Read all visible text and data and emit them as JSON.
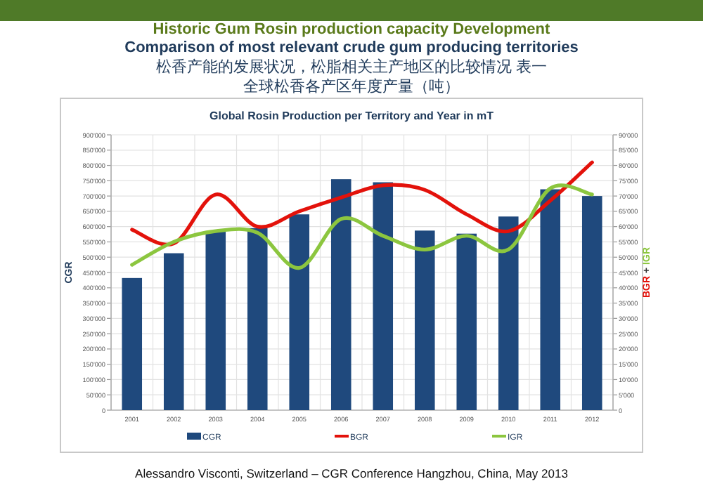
{
  "chart_data": {
    "type": "bar",
    "title": "Global Rosin Production per Territory and Year in mT",
    "annotations": [
      "Historic Gum Rosin production capacity Development",
      "Comparison of most relevant crude gum producing territories",
      "松香产能的发展状况，松脂相关主产地区的比较情况 表一",
      "全球松香各产区年度产量（吨）",
      "Alessandro Visconti, Switzerland – CGR Conference Hangzhou, China, May 2013"
    ],
    "ylabel": "CGR",
    "y2label": "BGR + IGR",
    "categories": [
      "2001",
      "2002",
      "2003",
      "2004",
      "2005",
      "2006",
      "2007",
      "2008",
      "2009",
      "2010",
      "2011",
      "2012"
    ],
    "series": [
      {
        "name": "CGR",
        "color": "#1f497d",
        "values": [
          432000,
          513000,
          583000,
          595000,
          640000,
          755000,
          745000,
          587000,
          577000,
          633000,
          722000,
          700000
        ]
      },
      {
        "name": "BGR",
        "type": "line",
        "axis": "y2",
        "color": "#e3120b",
        "values": [
          59000,
          54500,
          70500,
          60000,
          65000,
          69500,
          73500,
          72000,
          64000,
          58500,
          68500,
          81000
        ]
      },
      {
        "name": "IGR",
        "type": "line",
        "axis": "y2",
        "color": "#8cc63f",
        "values": [
          47500,
          55000,
          58500,
          58000,
          46500,
          62500,
          57000,
          52500,
          57000,
          52500,
          72500,
          70500
        ]
      }
    ],
    "ylim": [
      0,
      900000
    ],
    "yticks": [
      {
        "value": 0,
        "label": "0"
      },
      {
        "value": 50000,
        "label": "50'000"
      },
      {
        "value": 100000,
        "label": "100'000"
      },
      {
        "value": 150000,
        "label": "150'000"
      },
      {
        "value": 200000,
        "label": "200'000"
      },
      {
        "value": 250000,
        "label": "250'000"
      },
      {
        "value": 300000,
        "label": "300'000"
      },
      {
        "value": 350000,
        "label": "350'000"
      },
      {
        "value": 400000,
        "label": "400'000"
      },
      {
        "value": 450000,
        "label": "450'000"
      },
      {
        "value": 500000,
        "label": "500'000"
      },
      {
        "value": 550000,
        "label": "550'000"
      },
      {
        "value": 600000,
        "label": "600'000"
      },
      {
        "value": 650000,
        "label": "650'000"
      },
      {
        "value": 700000,
        "label": "700'000"
      },
      {
        "value": 750000,
        "label": "750'000"
      },
      {
        "value": 800000,
        "label": "800'000"
      },
      {
        "value": 850000,
        "label": "850'000"
      },
      {
        "value": 900000,
        "label": "900'000"
      }
    ],
    "y2lim": [
      0,
      90000
    ],
    "y2ticks": [
      {
        "value": 0,
        "label": "0"
      },
      {
        "value": 5000,
        "label": "5'000"
      },
      {
        "value": 10000,
        "label": "10'000"
      },
      {
        "value": 15000,
        "label": "15'000"
      },
      {
        "value": 20000,
        "label": "20'000"
      },
      {
        "value": 25000,
        "label": "25'000"
      },
      {
        "value": 30000,
        "label": "30'000"
      },
      {
        "value": 35000,
        "label": "35'000"
      },
      {
        "value": 40000,
        "label": "40'000"
      },
      {
        "value": 45000,
        "label": "45'000"
      },
      {
        "value": 50000,
        "label": "50'000"
      },
      {
        "value": 55000,
        "label": "55'000"
      },
      {
        "value": 60000,
        "label": "60'000"
      },
      {
        "value": 65000,
        "label": "65'000"
      },
      {
        "value": 70000,
        "label": "70'000"
      },
      {
        "value": 75000,
        "label": "75'000"
      },
      {
        "value": 80000,
        "label": "80'000"
      },
      {
        "value": 85000,
        "label": "85'000"
      },
      {
        "value": 90000,
        "label": "90'000"
      }
    ],
    "grid": true,
    "legend": "bottom"
  }
}
